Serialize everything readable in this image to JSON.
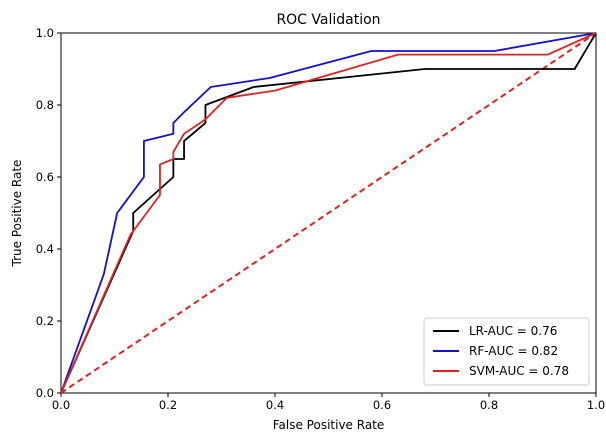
{
  "chart_data": {
    "type": "line",
    "title": "ROC Validation",
    "xlabel": "False Positive Rate",
    "ylabel": "True Positive Rate",
    "xlim": [
      0.0,
      1.0
    ],
    "ylim": [
      0.0,
      1.0
    ],
    "xticks": [
      "0.0",
      "0.2",
      "0.4",
      "0.6",
      "0.8",
      "1.0"
    ],
    "yticks": [
      "0.0",
      "0.2",
      "0.4",
      "0.6",
      "0.8",
      "1.0"
    ],
    "grid": false,
    "legend_position": "lower-right",
    "series": [
      {
        "name": "LR-AUC = 0.76",
        "color": "#000000",
        "x": [
          0.0,
          0.135,
          0.135,
          0.21,
          0.21,
          0.23,
          0.23,
          0.27,
          0.27,
          0.36,
          0.68,
          0.96,
          1.0
        ],
        "y": [
          0.0,
          0.45,
          0.5,
          0.6,
          0.65,
          0.65,
          0.7,
          0.75,
          0.8,
          0.85,
          0.9,
          0.9,
          1.0
        ]
      },
      {
        "name": "RF-AUC = 0.82",
        "color": "#1111cc",
        "x": [
          0.0,
          0.08,
          0.105,
          0.155,
          0.155,
          0.21,
          0.21,
          0.23,
          0.28,
          0.39,
          0.58,
          0.81,
          1.0
        ],
        "y": [
          0.0,
          0.33,
          0.5,
          0.6,
          0.7,
          0.72,
          0.75,
          0.78,
          0.85,
          0.875,
          0.95,
          0.95,
          1.0
        ]
      },
      {
        "name": "SVM-AUC = 0.78",
        "color": "#dd2222",
        "x": [
          0.0,
          0.13,
          0.185,
          0.185,
          0.21,
          0.21,
          0.23,
          0.27,
          0.31,
          0.4,
          0.63,
          0.91,
          1.0
        ],
        "y": [
          0.0,
          0.44,
          0.55,
          0.635,
          0.65,
          0.67,
          0.72,
          0.76,
          0.82,
          0.84,
          0.94,
          0.94,
          1.0
        ]
      }
    ],
    "reference_line": {
      "color": "#dd2222",
      "style": "dashed",
      "x": [
        0.0,
        1.0
      ],
      "y": [
        0.0,
        1.0
      ]
    }
  }
}
